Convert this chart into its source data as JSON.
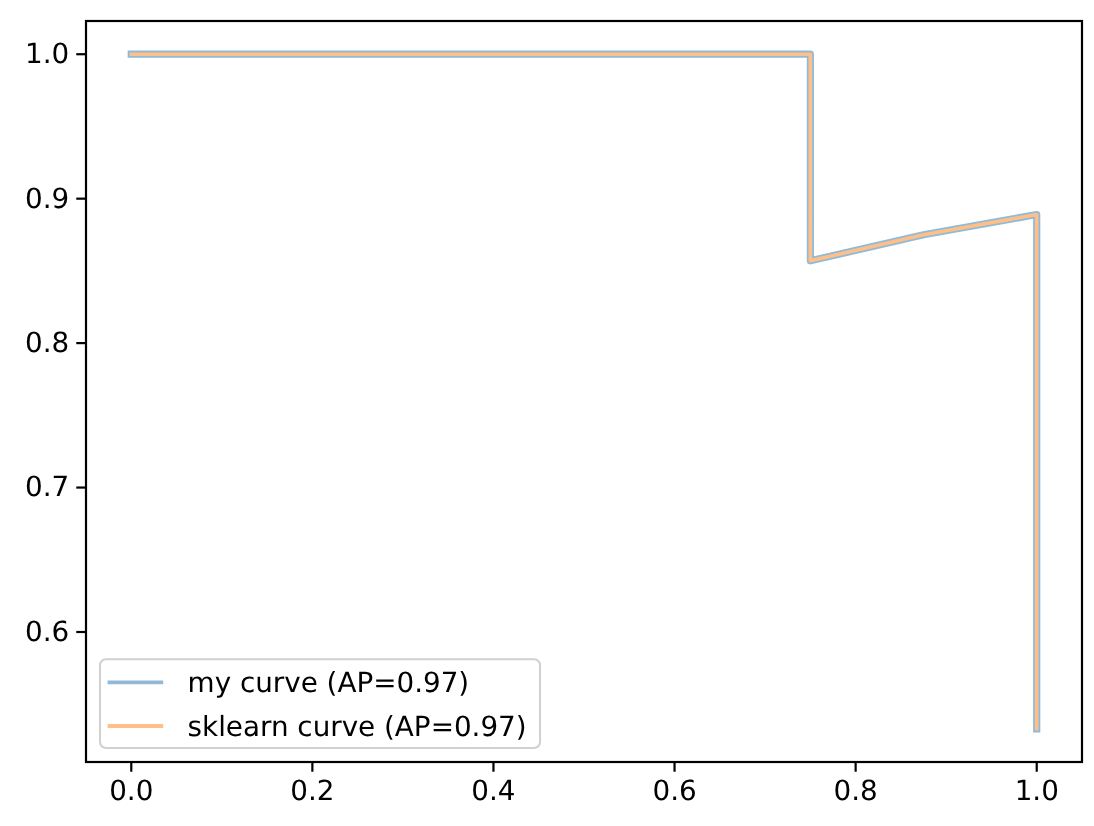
{
  "chart_data": {
    "type": "line",
    "x": [
      0,
      0.75,
      0.75,
      0.875,
      1,
      1
    ],
    "series": [
      {
        "name": "my curve (AP=0.97)",
        "color": "#8fbbd9",
        "values": [
          1,
          1,
          0.857,
          0.875,
          0.889,
          0.533
        ]
      },
      {
        "name": "sklearn curve (AP=0.97)",
        "color": "#ffbf86",
        "values": [
          1,
          1,
          0.857,
          0.875,
          0.889,
          0.533
        ]
      }
    ],
    "xlim": [
      -0.05,
      1.05
    ],
    "ylim": [
      0.51,
      1.023
    ],
    "xticks": [
      {
        "value": 0,
        "label": "0.0"
      },
      0.2,
      0.4,
      0.6,
      0.8,
      {
        "value": 1,
        "label": "1.0"
      }
    ],
    "yticks": [
      0.6,
      0.7,
      0.8,
      0.9,
      {
        "value": 1,
        "label": "1.0"
      }
    ],
    "legend": "bottom left",
    "grid": false
  }
}
